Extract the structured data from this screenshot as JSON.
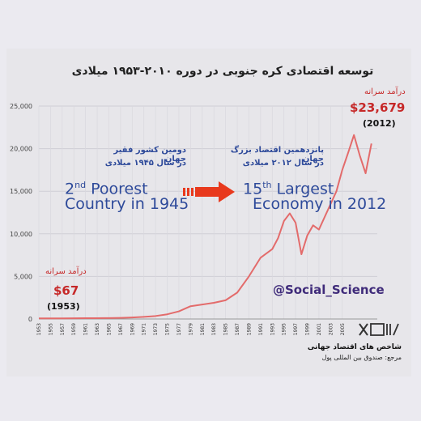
{
  "title": "توسعه اقتصادی کره جنوبی در دوره ۲۰۱۰-۱۹۵۳ میلادی",
  "annotations": {
    "poorest_fa_1": "دومین کشور فقیر جهان",
    "poorest_fa_2": "در سال ۱۹۴۵ میلادی",
    "poorest_en_num": "2",
    "poorest_en_sup": "nd",
    "poorest_en_1": " Poorest",
    "poorest_en_2": "Country in 1945",
    "largest_fa_1": "پانزدهمین اقتصاد بزرگ جهان",
    "largest_fa_2": "در سال ۲۰۱۲ میلادی",
    "largest_en_num": "15",
    "largest_en_sup": "th",
    "largest_en_1": " Largest",
    "largest_en_2": "Economy in 2012",
    "income_fa_start": "درآمد سرانه",
    "income_start": "$67",
    "income_start_year": "(1953)",
    "income_fa_end": "درآمد سرانه",
    "income_end": "$23,679",
    "income_end_year": "(2012)",
    "handle": "@Social_Science",
    "source_title": "شاخص های اقتصاد جهانی",
    "source_ref": "مرجع: صندوق بین المللی پول"
  },
  "colors": {
    "line": "#e36b6b",
    "accent_red": "#c62828",
    "blue_text": "#2e4a9a",
    "arrow": "#e8391d"
  },
  "chart_data": {
    "type": "line",
    "title": "توسعه اقتصادی کره جنوبی در دوره ۲۰۱۰-۱۹۵۳ میلادی",
    "xlabel": "",
    "ylabel": "",
    "ylim": [
      0,
      25000
    ],
    "yticks": [
      "0",
      "5,000",
      "10,000",
      "15,000",
      "20,000",
      "25,000"
    ],
    "ytick_values": [
      0,
      5000,
      10000,
      15000,
      20000,
      25000
    ],
    "xticks": [
      "1953",
      "1955",
      "1957",
      "1959",
      "1961",
      "1963",
      "1965",
      "1967",
      "1969",
      "1971",
      "1973",
      "1975",
      "1977",
      "1979",
      "1981",
      "1983",
      "1985",
      "1987",
      "1989",
      "1991",
      "1993",
      "1995",
      "1997",
      "1999",
      "2001",
      "2003",
      "2005"
    ],
    "grid": true,
    "x": [
      1953,
      1955,
      1957,
      1959,
      1961,
      1963,
      1965,
      1967,
      1969,
      1971,
      1973,
      1975,
      1977,
      1979,
      1981,
      1983,
      1985,
      1987,
      1989,
      1991,
      1993,
      1994,
      1995,
      1996,
      1997,
      1998,
      1999,
      2000,
      2001,
      2002,
      2003,
      2004,
      2005,
      2006,
      2007,
      2008,
      2009,
      2010
    ],
    "y": [
      67,
      70,
      75,
      80,
      90,
      100,
      110,
      130,
      180,
      250,
      350,
      550,
      900,
      1500,
      1700,
      1900,
      2200,
      3100,
      5000,
      7200,
      8200,
      9500,
      11500,
      12400,
      11300,
      7600,
      9800,
      11000,
      10500,
      12000,
      13500,
      15000,
      17500,
      19500,
      21600,
      19200,
      17100,
      20600
    ]
  }
}
